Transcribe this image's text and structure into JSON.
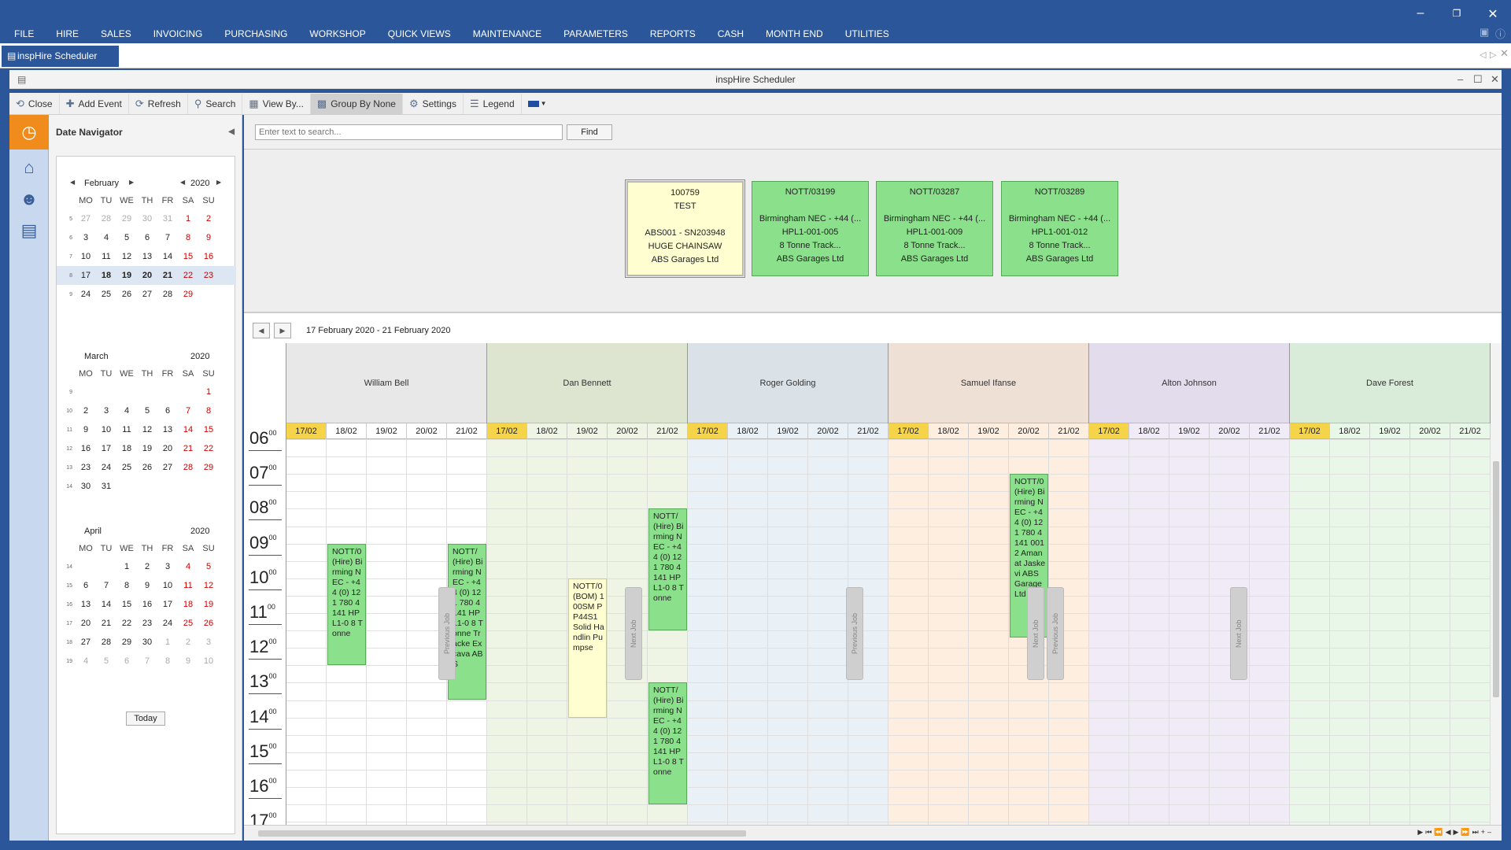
{
  "menu": [
    "FILE",
    "HIRE",
    "SALES",
    "INVOICING",
    "PURCHASING",
    "WORKSHOP",
    "QUICK VIEWS",
    "MAINTENANCE",
    "PARAMETERS",
    "REPORTS",
    "CASH",
    "MONTH END",
    "UTILITIES"
  ],
  "doc_tab": "inspHire Scheduler",
  "window_title": "inspHire Scheduler",
  "toolbar": {
    "close": "Close",
    "add_event": "Add Event",
    "refresh": "Refresh",
    "search": "Search",
    "view_by": "View By...",
    "group_by": "Group By None",
    "settings": "Settings",
    "legend": "Legend"
  },
  "date_navigator": {
    "title": "Date Navigator",
    "today": "Today",
    "dow": [
      "MO",
      "TU",
      "WE",
      "TH",
      "FR",
      "SA",
      "SU"
    ]
  },
  "calendars": [
    {
      "month": "February",
      "year": "2020",
      "weeks": [
        {
          "wk": "5",
          "days": [
            "27",
            "28",
            "29",
            "30",
            "31",
            "1",
            "2"
          ]
        },
        {
          "wk": "6",
          "days": [
            "3",
            "4",
            "5",
            "6",
            "7",
            "8",
            "9"
          ]
        },
        {
          "wk": "7",
          "days": [
            "10",
            "11",
            "12",
            "13",
            "14",
            "15",
            "16"
          ]
        },
        {
          "wk": "8",
          "days": [
            "17",
            "18",
            "19",
            "20",
            "21",
            "22",
            "23"
          ]
        },
        {
          "wk": "9",
          "days": [
            "24",
            "25",
            "26",
            "27",
            "28",
            "29",
            ""
          ]
        }
      ]
    },
    {
      "month": "March",
      "year": "2020",
      "weeks": [
        {
          "wk": "9",
          "days": [
            "",
            "",
            "",
            "",
            "",
            "",
            "1"
          ]
        },
        {
          "wk": "10",
          "days": [
            "2",
            "3",
            "4",
            "5",
            "6",
            "7",
            "8"
          ]
        },
        {
          "wk": "11",
          "days": [
            "9",
            "10",
            "11",
            "12",
            "13",
            "14",
            "15"
          ]
        },
        {
          "wk": "12",
          "days": [
            "16",
            "17",
            "18",
            "19",
            "20",
            "21",
            "22"
          ]
        },
        {
          "wk": "13",
          "days": [
            "23",
            "24",
            "25",
            "26",
            "27",
            "28",
            "29"
          ]
        },
        {
          "wk": "14",
          "days": [
            "30",
            "31",
            "",
            "",
            "",
            "",
            ""
          ]
        }
      ]
    },
    {
      "month": "April",
      "year": "2020",
      "weeks": [
        {
          "wk": "14",
          "days": [
            "",
            "",
            "1",
            "2",
            "3",
            "4",
            "5"
          ]
        },
        {
          "wk": "15",
          "days": [
            "6",
            "7",
            "8",
            "9",
            "10",
            "11",
            "12"
          ]
        },
        {
          "wk": "16",
          "days": [
            "13",
            "14",
            "15",
            "16",
            "17",
            "18",
            "19"
          ]
        },
        {
          "wk": "17",
          "days": [
            "20",
            "21",
            "22",
            "23",
            "24",
            "25",
            "26"
          ]
        },
        {
          "wk": "18",
          "days": [
            "27",
            "28",
            "29",
            "30",
            "1",
            "2",
            "3"
          ]
        },
        {
          "wk": "19",
          "days": [
            "4",
            "5",
            "6",
            "7",
            "8",
            "9",
            "10"
          ]
        }
      ]
    }
  ],
  "search": {
    "placeholder": "Enter text to search...",
    "find": "Find"
  },
  "unscheduled": [
    {
      "lines": [
        "100759",
        "TEST",
        "",
        "ABS001 - SN203948",
        "HUGE CHAINSAW",
        "ABS Garages Ltd"
      ],
      "color": "yellow"
    },
    {
      "lines": [
        "NOTT/03199",
        "",
        "Birmingham NEC - +44 (...",
        "HPL1-001-005",
        "8 Tonne Track...",
        "ABS Garages Ltd"
      ],
      "color": "green"
    },
    {
      "lines": [
        "NOTT/03287",
        "",
        "Birmingham NEC - +44 (...",
        "HPL1-001-009",
        "8 Tonne Track...",
        "ABS Garages Ltd"
      ],
      "color": "green"
    },
    {
      "lines": [
        "NOTT/03289",
        "",
        "Birmingham NEC - +44 (...",
        "HPL1-001-012",
        "8 Tonne Track...",
        "ABS Garages Ltd"
      ],
      "color": "green"
    }
  ],
  "range": "17 February 2020 - 21 February 2020",
  "dates": [
    "17/02",
    "18/02",
    "19/02",
    "20/02",
    "21/02"
  ],
  "hours": [
    "06",
    "07",
    "08",
    "09",
    "10",
    "11",
    "12",
    "13",
    "14",
    "15",
    "16",
    "17"
  ],
  "minutes": "00",
  "resources": [
    {
      "name": "William Bell",
      "color": "#ffffff",
      "head": "#e8e8e8"
    },
    {
      "name": "Dan Bennett",
      "color": "#eef5e4",
      "head": "#dde5d0"
    },
    {
      "name": "Roger Golding",
      "color": "#e9f1f6",
      "head": "#dae2e8"
    },
    {
      "name": "Samuel Ifanse",
      "color": "#fdeee0",
      "head": "#efe0d6"
    },
    {
      "name": "Alton Johnson",
      "color": "#f1ebf7",
      "head": "#e2dcec"
    },
    {
      "name": "Dave Forest",
      "color": "#e8f7e8",
      "head": "#d9ecd9"
    }
  ],
  "events": [
    {
      "res": 0,
      "day": 1,
      "start": 9,
      "end": 12.5,
      "color": "green",
      "text": "NOTT/0 (Hire) Birming NEC - +44 (0) 121 780 4141 HPL1-0 8 Tonne"
    },
    {
      "res": 0,
      "day": 4,
      "start": 9,
      "end": 13.5,
      "color": "green",
      "text": "NOTT/ (Hire) Birming NEC - +44 (0) 121 780 4141 HPL1-0 8 Tonne Tracke Excava ABS"
    },
    {
      "res": 1,
      "day": 2,
      "start": 10,
      "end": 14,
      "color": "yellow",
      "text": "NOTT/0 (BOM) 100SM PP44S1 Solid Handlin Pumpse"
    },
    {
      "res": 1,
      "day": 4,
      "start": 8,
      "end": 11.5,
      "color": "green",
      "text": "NOTT/ (Hire) Birming NEC - +44 (0) 121 780 4141 HPL1-0 8 Tonne"
    },
    {
      "res": 1,
      "day": 4,
      "start": 13,
      "end": 16.5,
      "color": "green",
      "text": "NOTT/ (Hire) Birming NEC - +44 (0) 121 780 4141 HPL1-0 8 Tonne"
    },
    {
      "res": 3,
      "day": 3,
      "start": 7,
      "end": 11.7,
      "color": "green",
      "text": "NOTT/0 (Hire) Birming NEC - +44 (0) 121 780 4141 0012 Amanat Jaskevi ABS Garage Ltd"
    }
  ],
  "job_tabs": {
    "previous": "Previous Job",
    "next": "Next Job"
  }
}
